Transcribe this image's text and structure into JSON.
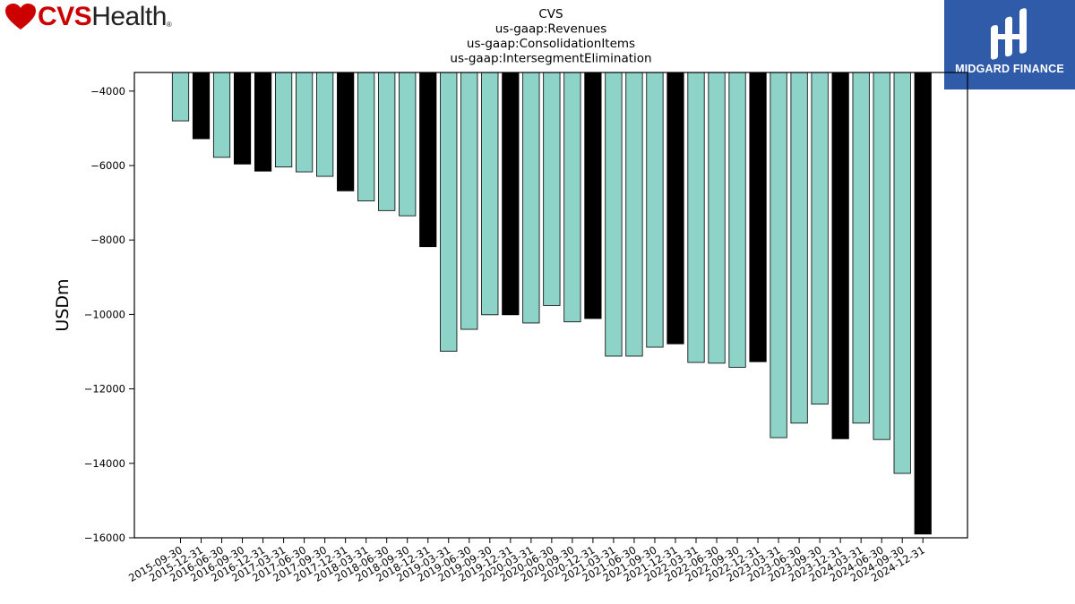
{
  "branding": {
    "left_logo_cvs": "CVS",
    "left_logo_health": "Health",
    "left_logo_reg": "®",
    "right_logo_text": "MIDGARD FINANCE",
    "colors": {
      "cvs_red": "#cc0000",
      "midgard_blue": "#2f5ba8"
    }
  },
  "chart_data": {
    "type": "bar",
    "title_lines": [
      "CVS",
      "us-gaap:Revenues",
      "us-gaap:ConsolidationItems",
      "us-gaap:IntersegmentElimination"
    ],
    "ylabel": "USDm",
    "xlabel": "",
    "ylim": [
      -16000,
      -3500
    ],
    "yticks": [
      -4000,
      -6000,
      -8000,
      -10000,
      -12000,
      -14000,
      -16000
    ],
    "grid": false,
    "colors": {
      "quarter": "#8dd3c7",
      "year_end": "#000000",
      "edge": "#000000"
    },
    "categories": [
      "2015-09-30",
      "2015-12-31",
      "2016-06-30",
      "2016-09-30",
      "2016-12-31",
      "2017-03-31",
      "2017-06-30",
      "2017-09-30",
      "2017-12-31",
      "2018-03-31",
      "2018-06-30",
      "2018-09-30",
      "2018-12-31",
      "2019-03-31",
      "2019-06-30",
      "2019-09-30",
      "2019-12-31",
      "2020-03-31",
      "2020-06-30",
      "2020-09-30",
      "2020-12-31",
      "2021-03-31",
      "2021-06-30",
      "2021-09-30",
      "2021-12-31",
      "2022-03-31",
      "2022-06-30",
      "2022-09-30",
      "2022-12-31",
      "2023-03-31",
      "2023-06-30",
      "2023-09-30",
      "2023-12-31",
      "2024-03-31",
      "2024-06-30",
      "2024-09-30",
      "2024-12-31"
    ],
    "values": [
      -4800,
      -5280,
      -5780,
      -5960,
      -6150,
      -6040,
      -6170,
      -6290,
      -6680,
      -6950,
      -7210,
      -7350,
      -8180,
      -10990,
      -10400,
      -10010,
      -10010,
      -10230,
      -9760,
      -10200,
      -10110,
      -11120,
      -11120,
      -10880,
      -10790,
      -11290,
      -11310,
      -11420,
      -11270,
      -13310,
      -12920,
      -12410,
      -13340,
      -12920,
      -13360,
      -14270,
      -15900
    ],
    "year_end": [
      false,
      true,
      false,
      true,
      true,
      false,
      false,
      false,
      true,
      false,
      false,
      false,
      true,
      false,
      false,
      false,
      true,
      false,
      false,
      false,
      true,
      false,
      false,
      false,
      true,
      false,
      false,
      false,
      true,
      false,
      false,
      false,
      true,
      false,
      false,
      false,
      true
    ]
  }
}
